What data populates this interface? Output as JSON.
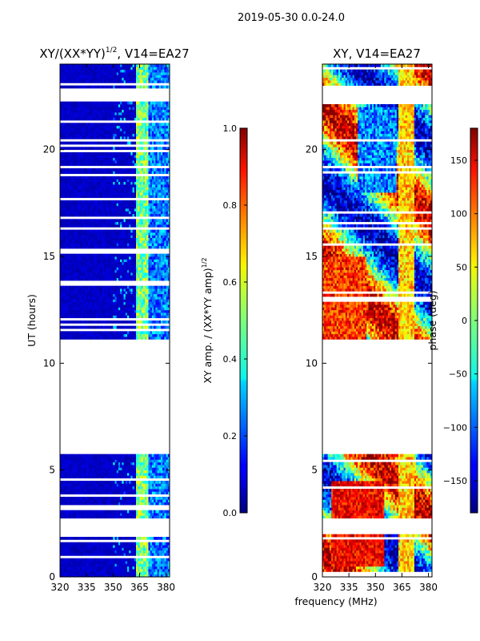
{
  "figure_title": "2019-05-30 0.0-24.0",
  "panels": [
    {
      "title_main": "XY/(XX*YY)",
      "title_sup": "1/2",
      "title_suffix": ", V14=EA27",
      "ylabel": "UT (hours)",
      "colorbar_label_main": "XY amp. / (XX*YY amp)",
      "colorbar_label_sup": "1/2"
    },
    {
      "title_main": "XY, V14=EA27",
      "colorbar_label_main": "phase (deg)"
    }
  ],
  "xlabel": "frequency (MHz)",
  "chart_data": [
    {
      "type": "heatmap",
      "title": "XY/(XX*YY)^1/2, V14=EA27",
      "xlabel": "",
      "ylabel": "UT (hours)",
      "xlim": [
        320,
        382
      ],
      "ylim": [
        0,
        24
      ],
      "xticks": [
        320,
        335,
        350,
        365,
        380
      ],
      "yticks": [
        0,
        5,
        10,
        15,
        20
      ],
      "colorbar": {
        "vmin": 0.0,
        "vmax": 1.0,
        "ticks": [
          "0.0",
          "0.2",
          "0.4",
          "0.6",
          "0.8",
          "1.0"
        ],
        "cmap": "jet",
        "label": "XY amp. / (XX*YY amp)^1/2"
      },
      "data_present_ut_ranges": [
        [
          0.0,
          0.2
        ],
        [
          0.3,
          2.0
        ],
        [
          2.7,
          5.8
        ],
        [
          11.1,
          22.3
        ],
        [
          22.9,
          24.0
        ]
      ],
      "description_values": "mostly low (~0.05) with bright band (~0.4-0.6) near 363-370 MHz and weaker structure 370-382 MHz"
    },
    {
      "type": "heatmap",
      "title": "XY, V14=EA27",
      "xlabel": "frequency (MHz)",
      "ylabel": "",
      "xlim": [
        320,
        382
      ],
      "ylim": [
        0,
        24
      ],
      "xticks": [
        320,
        335,
        350,
        365,
        380
      ],
      "yticks": [
        0,
        5,
        10,
        15,
        20
      ],
      "colorbar": {
        "vmin": -180,
        "vmax": 180,
        "ticks": [
          "−150",
          "−100",
          "−50",
          "0",
          "50",
          "100",
          "150"
        ],
        "cmap": "jet",
        "label": "phase (deg)"
      },
      "data_present_ut_ranges": [
        [
          0.0,
          0.2
        ],
        [
          0.3,
          2.0
        ],
        [
          2.7,
          5.8
        ],
        [
          11.1,
          22.3
        ],
        [
          22.9,
          24.0
        ]
      ]
    }
  ]
}
